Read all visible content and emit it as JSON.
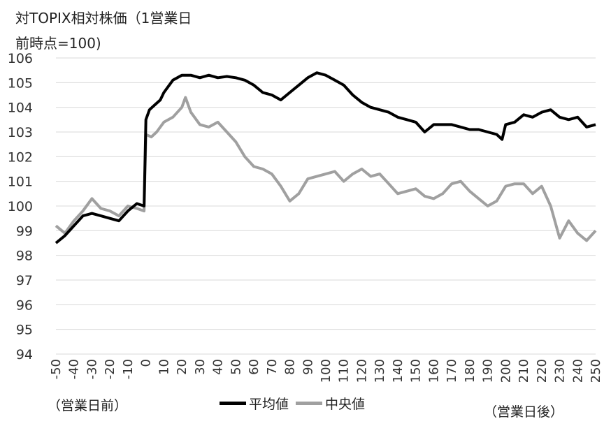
{
  "chart_data": {
    "type": "line",
    "title_line1": "対TOPIX相対株価（1営業日",
    "title_line2": "前時点=100)",
    "x_note_left": "（営業日前）",
    "x_note_right": "（営業日後）",
    "ylim": [
      94,
      106
    ],
    "yticks": [
      94,
      95,
      96,
      97,
      98,
      99,
      100,
      101,
      102,
      103,
      104,
      105,
      106
    ],
    "xlim": [
      -50,
      250
    ],
    "xticks": [
      -50,
      -40,
      -30,
      -20,
      -10,
      0,
      10,
      20,
      30,
      40,
      50,
      60,
      70,
      80,
      90,
      100,
      110,
      120,
      130,
      140,
      150,
      160,
      170,
      180,
      190,
      200,
      210,
      220,
      230,
      240,
      250
    ],
    "grid": "horizontal",
    "legend_position": "bottom-center",
    "series": [
      {
        "name": "平均値",
        "color": "#000000",
        "points": [
          [
            -50,
            98.5
          ],
          [
            -45,
            98.8
          ],
          [
            -40,
            99.2
          ],
          [
            -35,
            99.6
          ],
          [
            -30,
            99.7
          ],
          [
            -25,
            99.6
          ],
          [
            -20,
            99.5
          ],
          [
            -15,
            99.4
          ],
          [
            -10,
            99.8
          ],
          [
            -5,
            100.1
          ],
          [
            -1,
            100.0
          ],
          [
            0,
            103.5
          ],
          [
            2,
            103.9
          ],
          [
            5,
            104.1
          ],
          [
            8,
            104.3
          ],
          [
            10,
            104.6
          ],
          [
            15,
            105.1
          ],
          [
            20,
            105.3
          ],
          [
            25,
            105.3
          ],
          [
            30,
            105.2
          ],
          [
            35,
            105.3
          ],
          [
            40,
            105.2
          ],
          [
            45,
            105.25
          ],
          [
            50,
            105.2
          ],
          [
            55,
            105.1
          ],
          [
            60,
            104.9
          ],
          [
            65,
            104.6
          ],
          [
            70,
            104.5
          ],
          [
            75,
            104.3
          ],
          [
            80,
            104.6
          ],
          [
            85,
            104.9
          ],
          [
            90,
            105.2
          ],
          [
            95,
            105.4
          ],
          [
            100,
            105.3
          ],
          [
            105,
            105.1
          ],
          [
            110,
            104.9
          ],
          [
            115,
            104.5
          ],
          [
            120,
            104.2
          ],
          [
            125,
            104.0
          ],
          [
            130,
            103.9
          ],
          [
            135,
            103.8
          ],
          [
            140,
            103.6
          ],
          [
            145,
            103.5
          ],
          [
            150,
            103.4
          ],
          [
            155,
            103.0
          ],
          [
            160,
            103.3
          ],
          [
            165,
            103.3
          ],
          [
            170,
            103.3
          ],
          [
            175,
            103.2
          ],
          [
            180,
            103.1
          ],
          [
            185,
            103.1
          ],
          [
            190,
            103.0
          ],
          [
            195,
            102.9
          ],
          [
            198,
            102.7
          ],
          [
            200,
            103.3
          ],
          [
            205,
            103.4
          ],
          [
            210,
            103.7
          ],
          [
            215,
            103.6
          ],
          [
            220,
            103.8
          ],
          [
            225,
            103.9
          ],
          [
            230,
            103.6
          ],
          [
            235,
            103.5
          ],
          [
            240,
            103.6
          ],
          [
            245,
            103.2
          ],
          [
            250,
            103.3
          ]
        ]
      },
      {
        "name": "中央値",
        "color": "#a0a0a0",
        "points": [
          [
            -50,
            99.2
          ],
          [
            -45,
            98.9
          ],
          [
            -40,
            99.4
          ],
          [
            -35,
            99.8
          ],
          [
            -30,
            100.3
          ],
          [
            -25,
            99.9
          ],
          [
            -20,
            99.8
          ],
          [
            -15,
            99.6
          ],
          [
            -10,
            100.0
          ],
          [
            -5,
            99.9
          ],
          [
            -1,
            99.8
          ],
          [
            0,
            102.9
          ],
          [
            3,
            102.8
          ],
          [
            6,
            103.0
          ],
          [
            10,
            103.4
          ],
          [
            15,
            103.6
          ],
          [
            20,
            104.0
          ],
          [
            22,
            104.4
          ],
          [
            25,
            103.8
          ],
          [
            30,
            103.3
          ],
          [
            35,
            103.2
          ],
          [
            40,
            103.4
          ],
          [
            45,
            103.0
          ],
          [
            50,
            102.6
          ],
          [
            55,
            102.0
          ],
          [
            60,
            101.6
          ],
          [
            65,
            101.5
          ],
          [
            70,
            101.3
          ],
          [
            75,
            100.8
          ],
          [
            80,
            100.2
          ],
          [
            85,
            100.5
          ],
          [
            90,
            101.1
          ],
          [
            95,
            101.2
          ],
          [
            100,
            101.3
          ],
          [
            105,
            101.4
          ],
          [
            110,
            101.0
          ],
          [
            115,
            101.3
          ],
          [
            120,
            101.5
          ],
          [
            125,
            101.2
          ],
          [
            130,
            101.3
          ],
          [
            135,
            100.9
          ],
          [
            140,
            100.5
          ],
          [
            145,
            100.6
          ],
          [
            150,
            100.7
          ],
          [
            155,
            100.4
          ],
          [
            160,
            100.3
          ],
          [
            165,
            100.5
          ],
          [
            170,
            100.9
          ],
          [
            175,
            101.0
          ],
          [
            180,
            100.6
          ],
          [
            185,
            100.3
          ],
          [
            190,
            100.0
          ],
          [
            195,
            100.2
          ],
          [
            200,
            100.8
          ],
          [
            205,
            100.9
          ],
          [
            210,
            100.9
          ],
          [
            215,
            100.5
          ],
          [
            220,
            100.8
          ],
          [
            225,
            100.0
          ],
          [
            230,
            98.7
          ],
          [
            235,
            99.4
          ],
          [
            240,
            98.9
          ],
          [
            245,
            98.6
          ],
          [
            250,
            99.0
          ]
        ]
      }
    ]
  }
}
